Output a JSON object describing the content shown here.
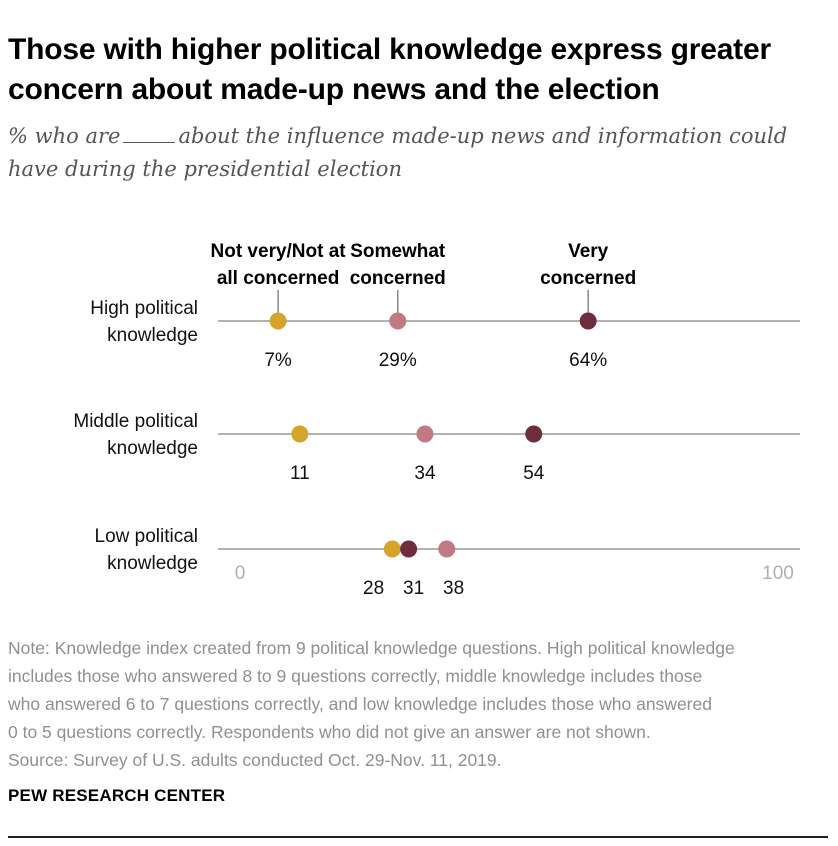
{
  "title_lines": [
    "Those with higher political knowledge express greater",
    "concern about made-up news and the election"
  ],
  "subtitle": {
    "prefix": "% who are",
    "suffix": "about the influence made-up news and information could",
    "line2": "have during the presidential election"
  },
  "chart_data": {
    "type": "dot",
    "xlim": [
      0,
      100
    ],
    "x_tick_labels": [
      "0",
      "100"
    ],
    "legend": [
      {
        "key": "not",
        "lines": [
          "Not very/Not at",
          "all concerned"
        ],
        "color": "#d4a52a"
      },
      {
        "key": "somewhat",
        "lines": [
          "Somewhat",
          "concerned"
        ],
        "color": "#c17a84"
      },
      {
        "key": "very",
        "lines": [
          "Very",
          "concerned"
        ],
        "color": "#6e2d3c"
      }
    ],
    "rows": [
      {
        "label_lines": [
          "High political",
          "knowledge"
        ],
        "values": {
          "not": 7,
          "somewhat": 29,
          "very": 64
        },
        "value_labels": {
          "not": "7%",
          "somewhat": "29%",
          "very": "64%"
        }
      },
      {
        "label_lines": [
          "Middle political",
          "knowledge"
        ],
        "values": {
          "not": 11,
          "somewhat": 34,
          "very": 54
        },
        "value_labels": {
          "not": "11",
          "somewhat": "34",
          "very": "54"
        }
      },
      {
        "label_lines": [
          "Low political",
          "knowledge"
        ],
        "values": {
          "not": 28,
          "somewhat": 38,
          "very": 31
        },
        "value_labels": {
          "not": "28",
          "somewhat": "38",
          "very": "31"
        }
      }
    ]
  },
  "note_lines": [
    "Note: Knowledge index created from 9 political knowledge questions. High political knowledge",
    "includes those who answered 8 to 9 questions correctly, middle knowledge includes those",
    "who answered 6 to 7 questions correctly, and low knowledge includes those who answered",
    "0 to 5 questions correctly. Respondents who did not give an answer are not shown.",
    "Source: Survey of U.S. adults conducted Oct. 29-Nov. 11, 2019."
  ],
  "brand": "PEW RESEARCH CENTER"
}
